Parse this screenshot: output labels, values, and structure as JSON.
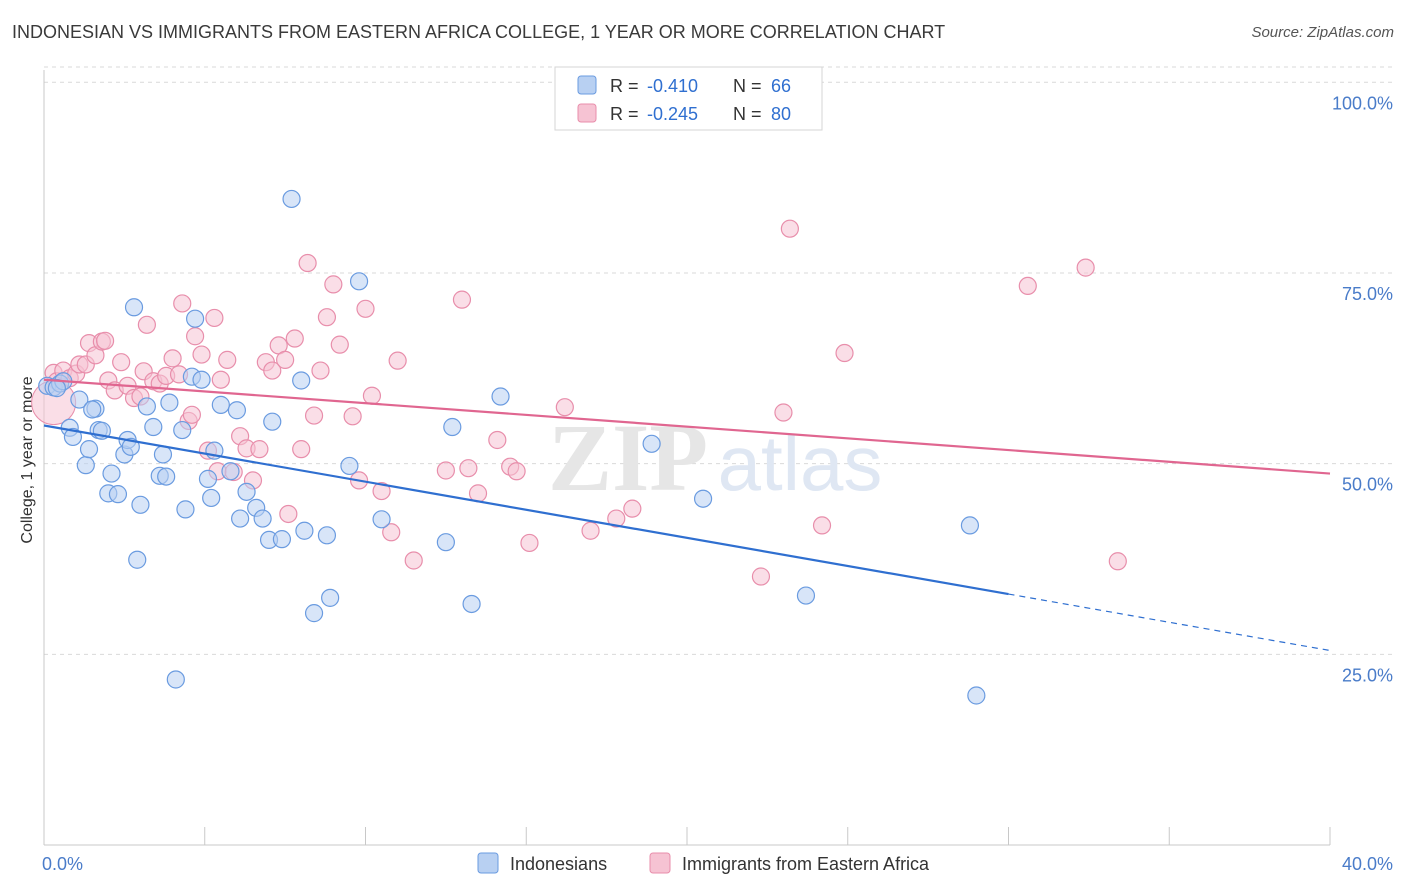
{
  "title": "INDONESIAN VS IMMIGRANTS FROM EASTERN AFRICA COLLEGE, 1 YEAR OR MORE CORRELATION CHART",
  "source": "Source: ZipAtlas.com",
  "watermark": {
    "zip": "ZIP",
    "atlas": "atlas"
  },
  "colors": {
    "blue_fill": "#b8d0f2",
    "blue_stroke": "#6a9be0",
    "blue_line": "#2f6fd0",
    "pink_fill": "#f6c3d3",
    "pink_stroke": "#e88eab",
    "pink_line": "#e06690",
    "axis_label": "#4a7cc9",
    "grid": "#d9d9d9"
  },
  "legend": {
    "blue": {
      "r_label": "R =",
      "r_value": "-0.410",
      "n_label": "N =",
      "n_value": "66"
    },
    "pink": {
      "r_label": "R =",
      "r_value": "-0.245",
      "n_label": "N =",
      "n_value": "80"
    }
  },
  "bottom_legend": {
    "blue": "Indonesians",
    "pink": "Immigrants from Eastern Africa"
  },
  "chart_data": {
    "type": "scatter",
    "xlabel": "",
    "ylabel": "College, 1 year or more",
    "xlim": [
      0,
      40
    ],
    "ylim": [
      0,
      102
    ],
    "x_tick_labels": [
      {
        "value": 0,
        "label": "0.0%"
      },
      {
        "value": 40,
        "label": "40.0%"
      }
    ],
    "y_tick_labels": [
      {
        "value": 100,
        "label": "100.0%"
      },
      {
        "value": 75,
        "label": "75.0%"
      },
      {
        "value": 50,
        "label": "50.0%"
      },
      {
        "value": 25,
        "label": "25.0%"
      }
    ],
    "series": [
      {
        "name": "Indonesians",
        "color": "blue",
        "trend": {
          "x1": 0,
          "y1": 55.0,
          "x2": 30,
          "y2": 32.9,
          "dash_to_x": 40,
          "dash_to_y": 25.5
        },
        "points": [
          [
            0.1,
            60.2
          ],
          [
            0.3,
            60.0
          ],
          [
            0.5,
            60.5
          ],
          [
            0.6,
            60.8
          ],
          [
            0.8,
            54.7
          ],
          [
            0.9,
            53.5
          ],
          [
            1.1,
            58.4
          ],
          [
            1.3,
            49.8
          ],
          [
            1.4,
            51.9
          ],
          [
            1.6,
            57.2
          ],
          [
            1.7,
            54.4
          ],
          [
            1.8,
            54.3
          ],
          [
            2.0,
            46.1
          ],
          [
            2.1,
            48.7
          ],
          [
            2.3,
            46.0
          ],
          [
            2.5,
            51.2
          ],
          [
            2.6,
            53.1
          ],
          [
            2.7,
            52.2
          ],
          [
            2.9,
            37.4
          ],
          [
            3.0,
            44.6
          ],
          [
            3.2,
            57.5
          ],
          [
            3.4,
            54.8
          ],
          [
            3.6,
            48.4
          ],
          [
            3.7,
            51.2
          ],
          [
            3.8,
            48.3
          ],
          [
            3.9,
            58.0
          ],
          [
            4.1,
            21.7
          ],
          [
            4.3,
            54.4
          ],
          [
            4.4,
            44.0
          ],
          [
            4.6,
            61.4
          ],
          [
            4.7,
            69.0
          ],
          [
            4.9,
            61.0
          ],
          [
            5.1,
            48.0
          ],
          [
            5.2,
            45.5
          ],
          [
            5.3,
            51.7
          ],
          [
            5.5,
            57.7
          ],
          [
            5.8,
            49.0
          ],
          [
            6.0,
            57.0
          ],
          [
            6.1,
            42.8
          ],
          [
            6.3,
            46.3
          ],
          [
            6.6,
            44.2
          ],
          [
            6.8,
            42.8
          ],
          [
            7.0,
            40.0
          ],
          [
            7.1,
            55.5
          ],
          [
            7.4,
            40.1
          ],
          [
            7.7,
            84.7
          ],
          [
            8.0,
            60.9
          ],
          [
            8.1,
            41.2
          ],
          [
            8.4,
            30.4
          ],
          [
            8.8,
            40.6
          ],
          [
            8.9,
            32.4
          ],
          [
            9.5,
            49.7
          ],
          [
            9.8,
            73.9
          ],
          [
            10.5,
            42.7
          ],
          [
            12.5,
            39.7
          ],
          [
            12.7,
            54.8
          ],
          [
            13.3,
            31.6
          ],
          [
            14.2,
            58.8
          ],
          [
            18.9,
            52.6
          ],
          [
            20.5,
            45.4
          ],
          [
            23.7,
            32.7
          ],
          [
            28.8,
            41.9
          ],
          [
            29.0,
            19.6
          ],
          [
            2.8,
            70.5
          ],
          [
            0.4,
            59.9
          ],
          [
            1.5,
            57.1
          ]
        ]
      },
      {
        "name": "Immigrants from Eastern Africa",
        "color": "pink",
        "trend": {
          "x1": 0,
          "y1": 61.0,
          "x2": 40,
          "y2": 48.7
        },
        "big_point": [
          0.3,
          58.0
        ],
        "points": [
          [
            0.3,
            61.9
          ],
          [
            0.4,
            60.8
          ],
          [
            0.6,
            62.2
          ],
          [
            0.8,
            61.2
          ],
          [
            1.0,
            61.8
          ],
          [
            1.1,
            63.0
          ],
          [
            1.3,
            63.0
          ],
          [
            1.4,
            65.8
          ],
          [
            1.6,
            64.2
          ],
          [
            1.8,
            66.0
          ],
          [
            2.0,
            60.9
          ],
          [
            2.2,
            59.6
          ],
          [
            2.4,
            63.3
          ],
          [
            2.6,
            60.2
          ],
          [
            2.8,
            58.6
          ],
          [
            3.0,
            58.8
          ],
          [
            3.1,
            62.1
          ],
          [
            3.2,
            68.2
          ],
          [
            3.4,
            60.8
          ],
          [
            3.6,
            60.5
          ],
          [
            3.8,
            61.5
          ],
          [
            4.0,
            63.8
          ],
          [
            4.2,
            61.7
          ],
          [
            4.3,
            71.0
          ],
          [
            4.5,
            55.6
          ],
          [
            4.6,
            56.4
          ],
          [
            4.7,
            66.7
          ],
          [
            4.9,
            64.3
          ],
          [
            5.1,
            51.7
          ],
          [
            5.3,
            69.1
          ],
          [
            5.4,
            49.0
          ],
          [
            5.5,
            61.0
          ],
          [
            5.7,
            63.6
          ],
          [
            5.9,
            48.9
          ],
          [
            6.1,
            53.6
          ],
          [
            6.3,
            52.0
          ],
          [
            6.5,
            47.8
          ],
          [
            6.7,
            51.9
          ],
          [
            6.9,
            63.3
          ],
          [
            7.1,
            62.2
          ],
          [
            7.3,
            65.5
          ],
          [
            7.5,
            63.6
          ],
          [
            7.6,
            43.4
          ],
          [
            7.8,
            66.4
          ],
          [
            8.0,
            51.9
          ],
          [
            8.2,
            76.3
          ],
          [
            8.4,
            56.3
          ],
          [
            8.6,
            62.2
          ],
          [
            8.8,
            69.2
          ],
          [
            9.0,
            73.5
          ],
          [
            9.2,
            65.6
          ],
          [
            9.6,
            56.2
          ],
          [
            9.8,
            47.8
          ],
          [
            10.0,
            70.3
          ],
          [
            10.2,
            58.9
          ],
          [
            10.5,
            46.4
          ],
          [
            10.8,
            41.0
          ],
          [
            11.0,
            63.5
          ],
          [
            11.5,
            37.3
          ],
          [
            12.5,
            49.1
          ],
          [
            13.0,
            71.5
          ],
          [
            13.2,
            49.4
          ],
          [
            13.5,
            46.1
          ],
          [
            14.1,
            53.1
          ],
          [
            14.5,
            49.6
          ],
          [
            14.7,
            49.0
          ],
          [
            15.1,
            39.6
          ],
          [
            16.2,
            57.4
          ],
          [
            17.0,
            41.2
          ],
          [
            17.8,
            42.8
          ],
          [
            18.3,
            44.1
          ],
          [
            22.3,
            35.2
          ],
          [
            23.0,
            56.7
          ],
          [
            23.2,
            80.8
          ],
          [
            24.2,
            41.9
          ],
          [
            24.9,
            64.5
          ],
          [
            30.6,
            73.3
          ],
          [
            32.4,
            75.7
          ],
          [
            33.4,
            37.2
          ],
          [
            1.9,
            66.1
          ]
        ]
      }
    ]
  }
}
